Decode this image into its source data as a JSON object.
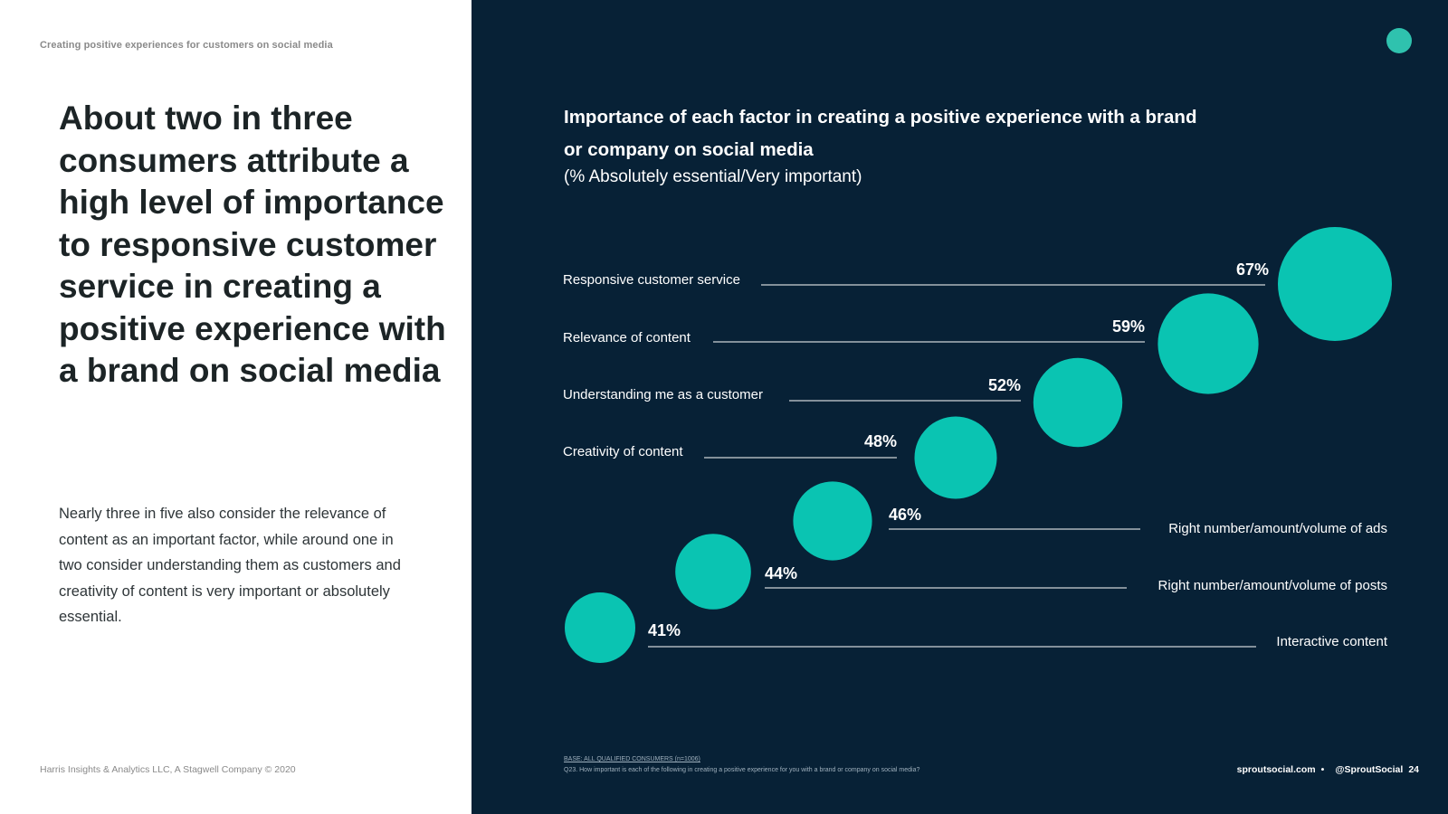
{
  "left": {
    "section_label": "Creating positive experiences for customers on social media",
    "headline": "About two in three consumers attribute a high level of importance to responsive customer service in creating a positive experience with a brand on social media",
    "body": "Nearly three in five also consider the relevance of content as an important factor, while around one in two consider understanding them as customers and creativity of content is very important or absolutely essential.",
    "copyright": "Harris Insights & Analytics LLC, A Stagwell Company © 2020"
  },
  "footer": {
    "base": "BASE: ALL QUALIFIED CONSUMERS (n=1006)",
    "question": "Q23. How important is each of the following in creating a positive experience for you with a brand or company on social media?",
    "site": "sproutsocial.com",
    "separator": "•",
    "handle": "@SproutSocial",
    "page_number": "24"
  },
  "colors": {
    "accent": "#0ac4b2",
    "dark_bg": "#072136",
    "logo": "#2fc2ae"
  },
  "chart_data": {
    "type": "bubble",
    "title": "Importance of each factor in creating a positive experience with a brand or company on social media",
    "subtitle": "(% Absolutely essential/Very important)",
    "unit": "%",
    "categories": [
      "Interactive content",
      "Right number/amount/volume of posts",
      "Right number/amount/volume of ads",
      "Creativity of content",
      "Understanding me as a customer",
      "Relevance of content",
      "Responsive customer service"
    ],
    "values": [
      41,
      44,
      46,
      48,
      52,
      59,
      67
    ],
    "value_labels": [
      "41%",
      "44%",
      "46%",
      "48%",
      "52%",
      "59%",
      "67%"
    ],
    "label_side": [
      "right",
      "right",
      "right",
      "left",
      "left",
      "left",
      "left"
    ]
  }
}
